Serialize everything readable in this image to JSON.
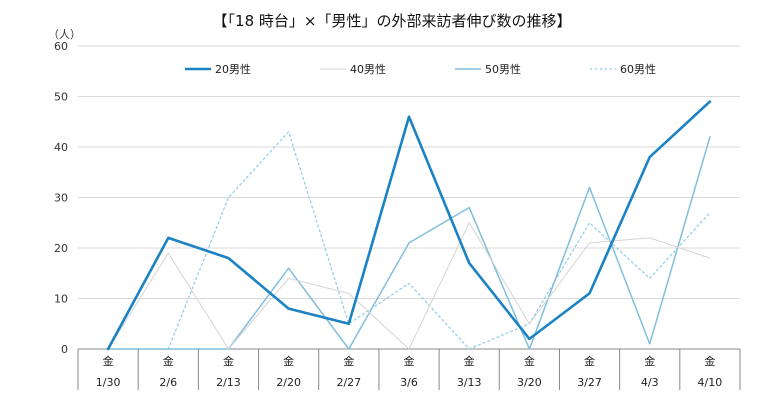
{
  "chart_data": {
    "type": "line",
    "title": "【「18 時台」×「男性」の外部来訪者伸び数の推移】",
    "yunit": "（人）",
    "ylim": [
      0,
      60
    ],
    "yticks": [
      0,
      10,
      20,
      30,
      40,
      50,
      60
    ],
    "grid": true,
    "legend_position": "top",
    "weekdays": [
      "金",
      "金",
      "金",
      "金",
      "金",
      "金",
      "金",
      "金",
      "金",
      "金",
      "金"
    ],
    "categories": [
      "1/30",
      "2/6",
      "2/13",
      "2/20",
      "2/27",
      "3/6",
      "3/13",
      "3/20",
      "3/27",
      "4/3",
      "4/10"
    ],
    "series": [
      {
        "name": "20男性",
        "color": "#1b82c3",
        "style": "bold",
        "values": [
          0,
          22,
          18,
          8,
          5,
          46,
          17,
          2,
          11,
          38,
          49
        ]
      },
      {
        "name": "40男性",
        "color": "#d4d4d4",
        "style": "thin",
        "values": [
          0,
          19,
          0,
          14,
          11,
          0,
          25,
          5,
          21,
          22,
          18
        ]
      },
      {
        "name": "50男性",
        "color": "#7fbfdc",
        "style": "medium",
        "values": [
          0,
          0,
          0,
          16,
          0,
          21,
          28,
          0,
          32,
          1,
          42
        ]
      },
      {
        "name": "60男性",
        "color": "#8fcbe6",
        "style": "dotted",
        "values": [
          0,
          0,
          30,
          43,
          5,
          13,
          0,
          5,
          25,
          14,
          27
        ]
      }
    ]
  }
}
